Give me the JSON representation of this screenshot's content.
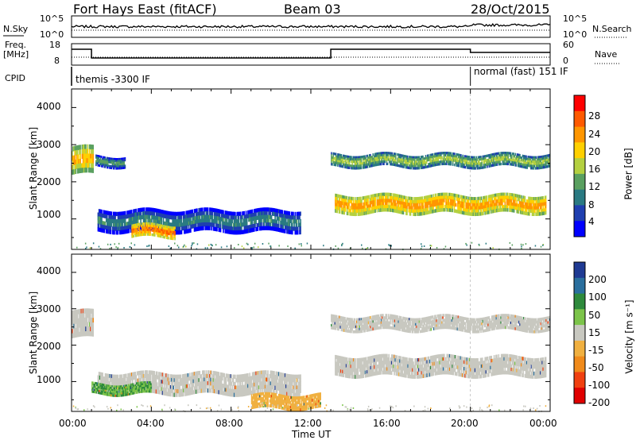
{
  "header": {
    "station": "Fort Hays East (fitACF)",
    "beam": "Beam 03",
    "date": "28/Oct/2015"
  },
  "noise_panel": {
    "left_label": "N.Sky",
    "right_label": "N.Search",
    "left_ticks": [
      "10^5",
      "10^0"
    ],
    "right_ticks": [
      "10^5",
      "10^0"
    ]
  },
  "freq_panel": {
    "left_label_1": "Freq.",
    "left_label_2": "[MHz]",
    "right_label": "Nave",
    "left_ticks": [
      "18",
      "8"
    ],
    "right_ticks": [
      "60",
      "0"
    ]
  },
  "cpid": {
    "label": "CPID",
    "segments": [
      "themis -3300 IF",
      "normal (fast) 151 IF"
    ]
  },
  "axes": {
    "ylabel": "Slant Range [km]",
    "xlabel": "Time UT",
    "yticks": [
      "4000",
      "3000",
      "2000",
      "1000"
    ],
    "xticks": [
      "00:00",
      "04:00",
      "08:00",
      "12:00",
      "16:00",
      "20:00",
      "00:00"
    ]
  },
  "power_bar": {
    "label": "Power [dB]",
    "ticks": [
      "28",
      "24",
      "20",
      "16",
      "12",
      "8",
      "4"
    ],
    "colors": [
      "#ff0000",
      "#ff5a00",
      "#ff9600",
      "#ffd000",
      "#b4d040",
      "#5aa060",
      "#2a7a82",
      "#1f3fb0",
      "#0000ff"
    ]
  },
  "velocity_bar": {
    "label": "Velocity [m s⁻¹]",
    "ticks": [
      "200",
      "100",
      "50",
      "15",
      "-15",
      "-50",
      "-100",
      "-200"
    ],
    "colors": [
      "#1f3a93",
      "#2a6f9e",
      "#2e8a3c",
      "#7cc44a",
      "#c8c8c0",
      "#f0b040",
      "#f08a1a",
      "#f04010",
      "#e00000"
    ]
  },
  "chart_data": [
    {
      "type": "heatmap",
      "title": "Power",
      "xlabel": "Time UT",
      "ylabel": "Slant Range [km]",
      "xlim": [
        "00:00",
        "24:00"
      ],
      "ylim": [
        180,
        4500
      ],
      "colorbar": {
        "label": "Power [dB]",
        "range": [
          0,
          30
        ]
      },
      "bands": [
        {
          "t0": 0.0,
          "t1": 1.1,
          "r0": 2200,
          "r1": 2950,
          "level": 20
        },
        {
          "t0": 1.2,
          "t1": 2.7,
          "r0": 2400,
          "r1": 2700,
          "level": 10
        },
        {
          "t0": 1.3,
          "t1": 11.5,
          "r0": 650,
          "r1": 1250,
          "level": 8
        },
        {
          "t0": 3.0,
          "t1": 5.2,
          "r0": 500,
          "r1": 850,
          "level": 24
        },
        {
          "t0": 13.0,
          "t1": 24.0,
          "r0": 2400,
          "r1": 2750,
          "level": 14
        },
        {
          "t0": 13.2,
          "t1": 23.8,
          "r0": 1150,
          "r1": 1650,
          "level": 22
        }
      ]
    },
    {
      "type": "heatmap",
      "title": "Velocity",
      "xlabel": "Time UT",
      "ylabel": "Slant Range [km]",
      "xlim": [
        "00:00",
        "24:00"
      ],
      "ylim": [
        180,
        4500
      ],
      "colorbar": {
        "label": "Velocity [m s⁻¹]",
        "range": [
          -200,
          200
        ]
      },
      "bands": [
        {
          "t0": 0.0,
          "t1": 1.1,
          "r0": 2200,
          "r1": 2950,
          "level": 0
        },
        {
          "t0": 1.3,
          "t1": 11.5,
          "r0": 650,
          "r1": 1250,
          "level": 0
        },
        {
          "t0": 1.0,
          "t1": 4.0,
          "r0": 650,
          "r1": 950,
          "level": 30
        },
        {
          "t0": 9.0,
          "t1": 12.5,
          "r0": 250,
          "r1": 650,
          "level": -40
        },
        {
          "t0": 13.0,
          "t1": 24.0,
          "r0": 2400,
          "r1": 2800,
          "level": 0
        },
        {
          "t0": 13.2,
          "t1": 23.8,
          "r0": 1150,
          "r1": 1700,
          "level": 0
        }
      ]
    }
  ]
}
